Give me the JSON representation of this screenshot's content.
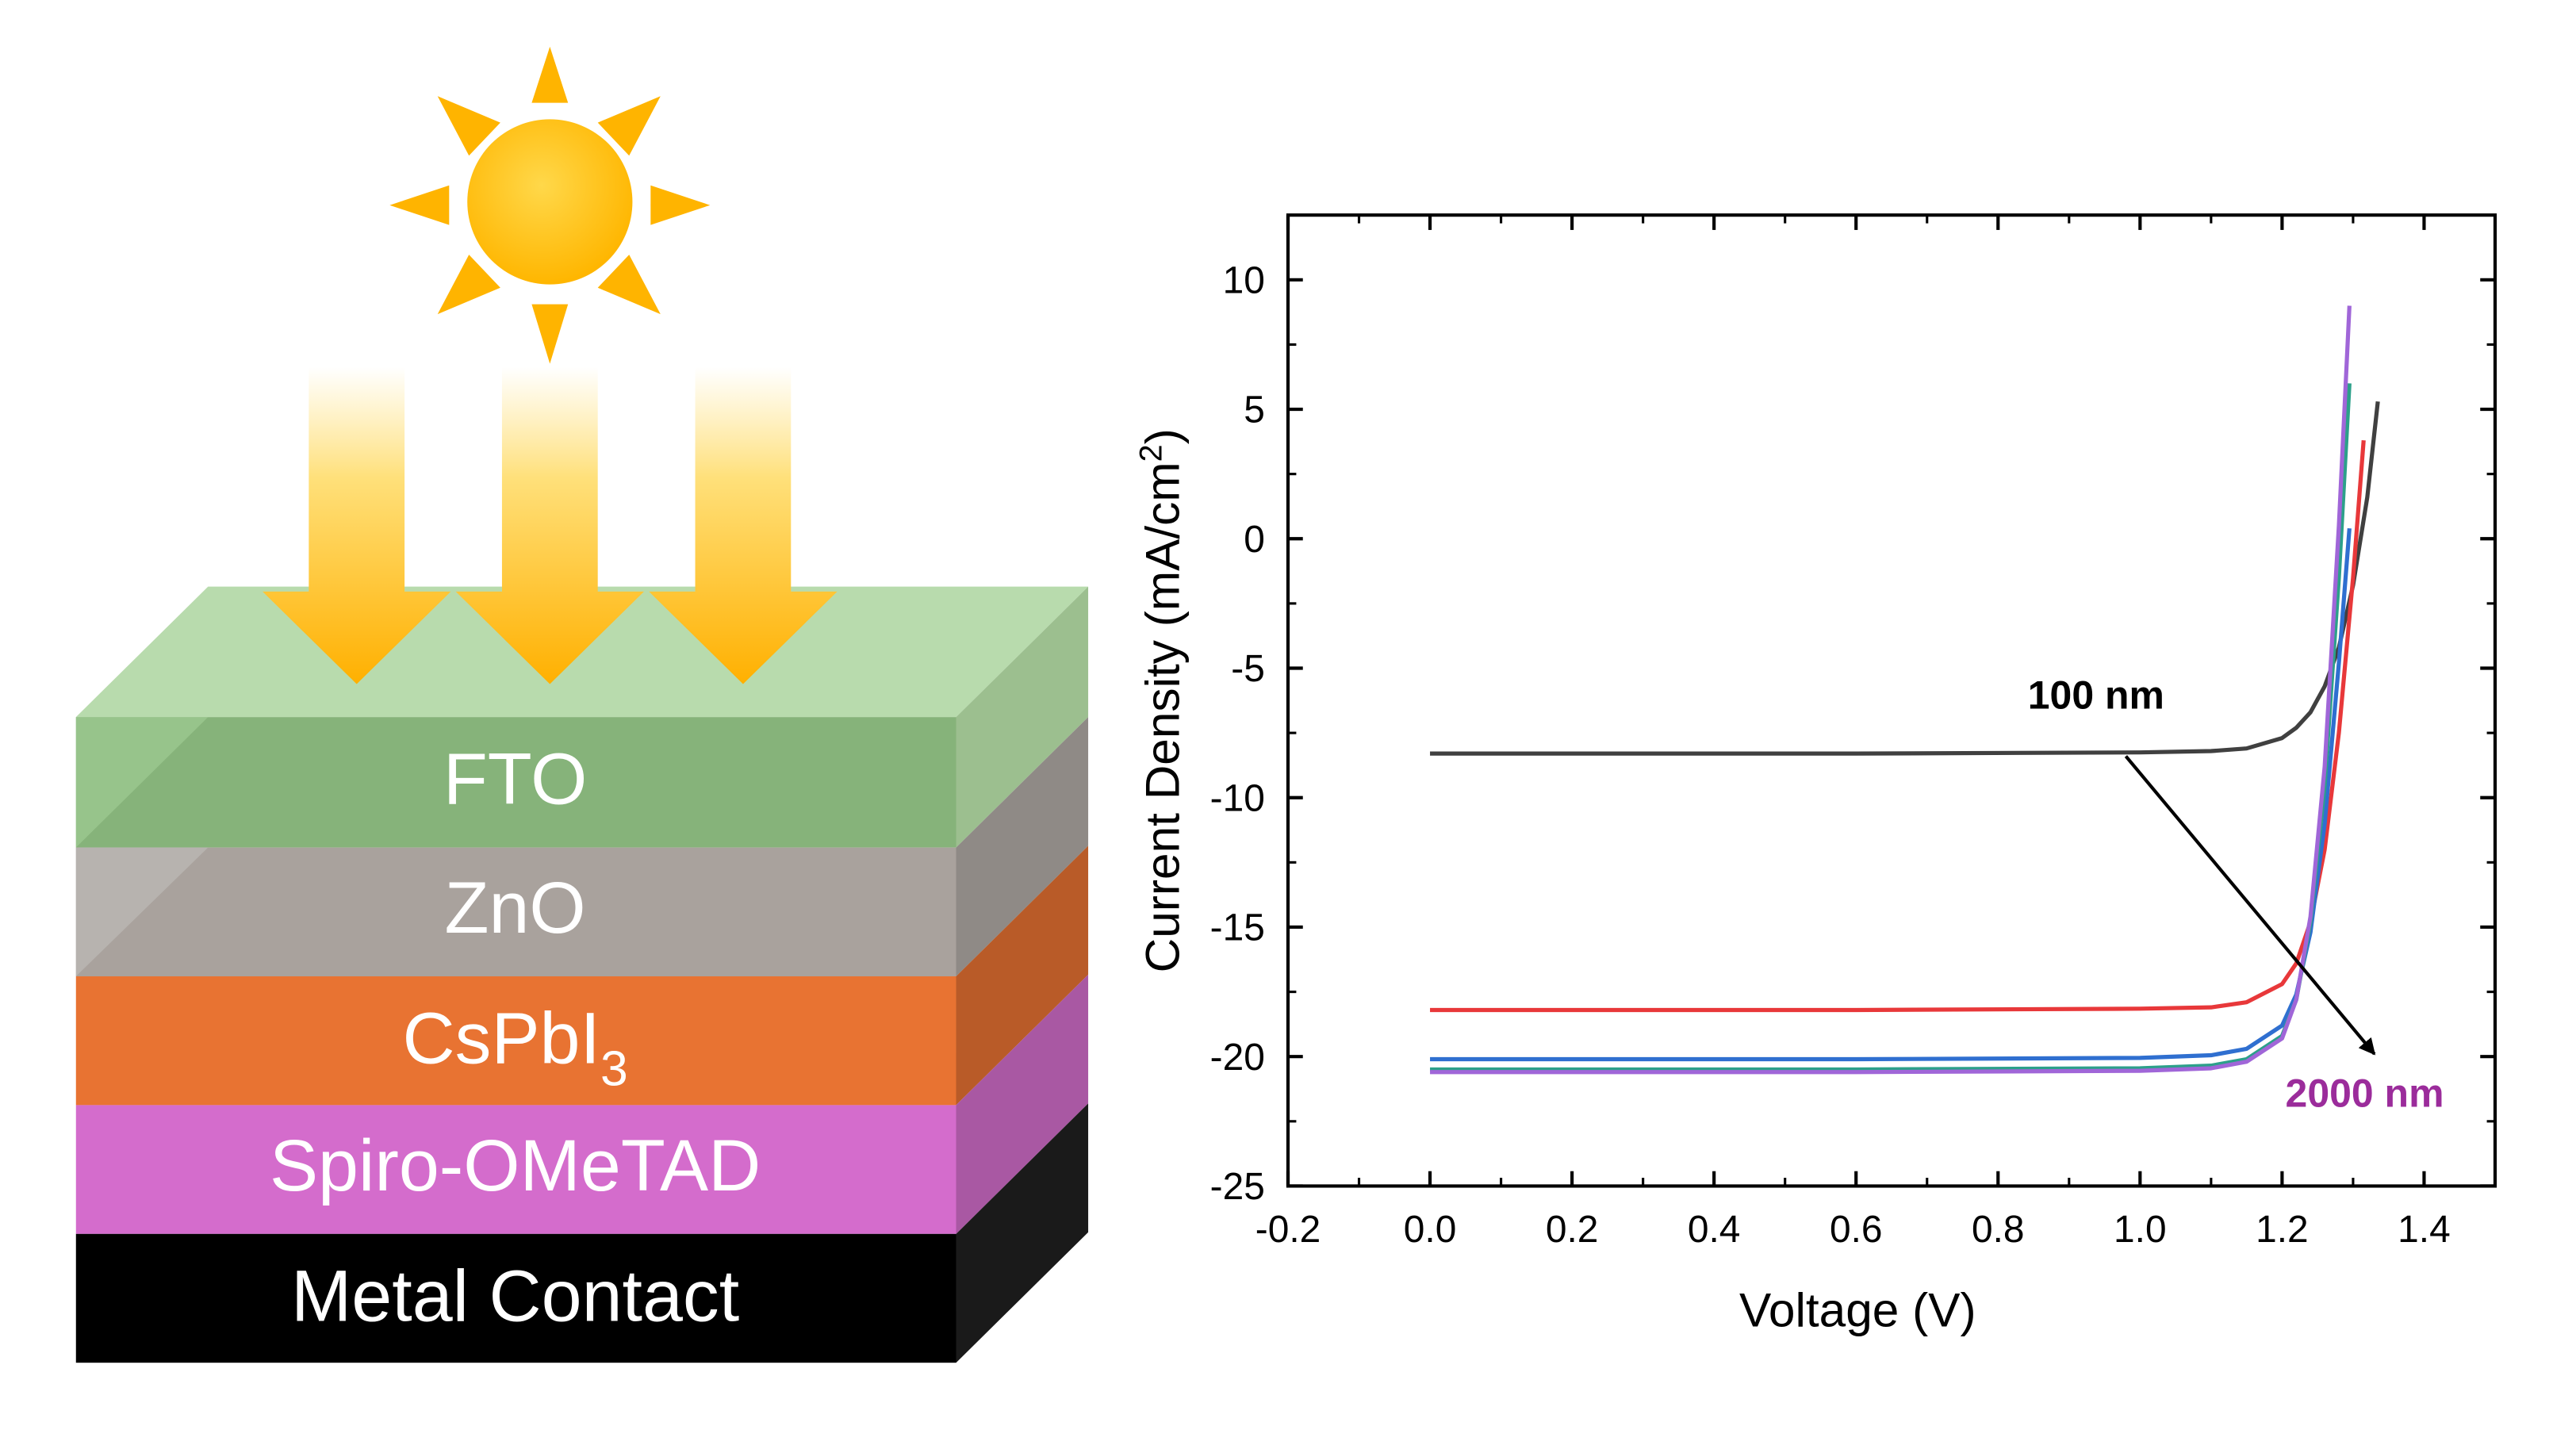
{
  "colors": {
    "sun": "#ffc60b",
    "ray": "#ffb400",
    "arrow": "#ffb300",
    "fto": "#86b37a",
    "zno": "#a9a29d",
    "cspbi3": "#e87332",
    "spiro": "#d46ccc",
    "metal": "#000000",
    "annotation_2000": "#9b2c9b"
  },
  "stack": {
    "layers": [
      {
        "id": "fto",
        "label": "FTO"
      },
      {
        "id": "zno",
        "label": "ZnO"
      },
      {
        "id": "cspbi3",
        "label_main": "CsPbI",
        "label_sub": "3"
      },
      {
        "id": "spiro",
        "label": "Spiro-OMeTAD"
      },
      {
        "id": "metal",
        "label": "Metal Contact"
      }
    ]
  },
  "chart_data": {
    "type": "line",
    "xlabel": "Voltage (V)",
    "ylabel_main": "Current Density (mA/cm",
    "ylabel_sup": "2",
    "ylabel_end": ")",
    "xlim": [
      -0.2,
      1.5
    ],
    "ylim": [
      -25,
      12.5
    ],
    "xticks": [
      -0.2,
      0.0,
      0.2,
      0.4,
      0.6,
      0.8,
      1.0,
      1.2,
      1.4
    ],
    "xtick_labels": [
      "-0.2",
      "0.0",
      "0.2",
      "0.4",
      "0.6",
      "0.8",
      "1.0",
      "1.2",
      "1.4"
    ],
    "yticks": [
      10,
      5,
      0,
      -5,
      -10,
      -15,
      -20,
      -25
    ],
    "ytick_labels": [
      "10",
      "5",
      "0",
      "-5",
      "-10",
      "-15",
      "-20",
      "-25"
    ],
    "series": [
      {
        "color": "#404040",
        "x": [
          0.0,
          0.6,
          1.0,
          1.1,
          1.15,
          1.2,
          1.22,
          1.24,
          1.26,
          1.28,
          1.3,
          1.32,
          1.335
        ],
        "y": [
          -8.3,
          -8.3,
          -8.25,
          -8.2,
          -8.1,
          -7.7,
          -7.3,
          -6.7,
          -5.7,
          -4.2,
          -1.8,
          1.6,
          5.3
        ]
      },
      {
        "color": "#e8383a",
        "x": [
          0.0,
          0.6,
          1.0,
          1.1,
          1.15,
          1.2,
          1.22,
          1.24,
          1.26,
          1.28,
          1.3,
          1.315
        ],
        "y": [
          -18.2,
          -18.2,
          -18.15,
          -18.1,
          -17.9,
          -17.2,
          -16.4,
          -14.8,
          -12.0,
          -7.5,
          -1.5,
          3.8
        ]
      },
      {
        "color": "#2f6fd0",
        "x": [
          0.0,
          0.6,
          1.0,
          1.1,
          1.15,
          1.2,
          1.22,
          1.24,
          1.26,
          1.28,
          1.295
        ],
        "y": [
          -20.1,
          -20.1,
          -20.05,
          -19.95,
          -19.7,
          -18.8,
          -17.6,
          -15.2,
          -11.0,
          -4.8,
          0.4
        ]
      },
      {
        "color": "#2ca08a",
        "x": [
          0.0,
          0.6,
          1.0,
          1.1,
          1.15,
          1.2,
          1.22,
          1.24,
          1.26,
          1.28,
          1.295
        ],
        "y": [
          -20.5,
          -20.5,
          -20.45,
          -20.35,
          -20.1,
          -19.2,
          -17.8,
          -14.8,
          -9.5,
          -1.5,
          6.0
        ]
      },
      {
        "color": "#a066d8",
        "x": [
          0.0,
          0.6,
          1.0,
          1.1,
          1.15,
          1.2,
          1.22,
          1.24,
          1.26,
          1.28,
          1.295
        ],
        "y": [
          -20.6,
          -20.6,
          -20.55,
          -20.45,
          -20.2,
          -19.3,
          -17.8,
          -14.6,
          -8.8,
          0.5,
          9.0
        ]
      }
    ],
    "annotations": {
      "start_label": "100 nm",
      "end_label": "2000 nm",
      "arrow_from": {
        "x": 0.98,
        "y": -8.4
      },
      "arrow_to": {
        "x": 1.33,
        "y": -19.9
      }
    }
  }
}
